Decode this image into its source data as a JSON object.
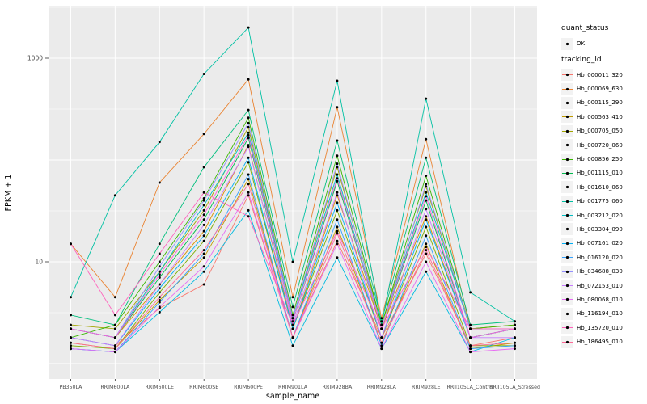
{
  "figure": {
    "background": "#FFFFFF",
    "panel_bg": "#EBEBEB",
    "grid_color": "#FFFFFF",
    "tick_color": "#333333",
    "tick_text_color": "#4D4D4D",
    "point_color": "#000000"
  },
  "legend": {
    "quant_status_title": "quant_status",
    "quant_status_items": [
      {
        "label": "OK"
      }
    ],
    "tracking_id_title": "tracking_id"
  },
  "chart_data": {
    "type": "line",
    "title": "",
    "xlabel": "sample_name",
    "ylabel": "FPKM + 1",
    "y_scale": "log10",
    "grid": true,
    "legend_position": "right",
    "y_ticks": [
      {
        "value": 10,
        "label": "10"
      },
      {
        "value": 1000,
        "label": "1000"
      }
    ],
    "categories": [
      "PB350LA",
      "RRIM600LA",
      "RRIM600LE",
      "RRIM600SE",
      "RRIM600PE",
      "RRIM901LA",
      "RRIM928BA",
      "RRIM928LA",
      "RRIM928LE",
      "RRII105LA_Control",
      "RRII105LA_Stressed"
    ],
    "series": [
      {
        "name": "Hb_000011_320",
        "color": "#F8766D",
        "values": [
          1.8,
          1.5,
          3.5,
          6,
          45,
          1.8,
          16,
          1.8,
          12,
          1.5,
          1.8
        ]
      },
      {
        "name": "Hb_000069_630",
        "color": "#EA8331",
        "values": [
          15,
          4.5,
          60,
          180,
          620,
          4.5,
          330,
          2.8,
          160,
          2.2,
          2.4
        ]
      },
      {
        "name": "Hb_000115_290",
        "color": "#D89000",
        "values": [
          2.2,
          1.8,
          6,
          20,
          140,
          2.2,
          45,
          2.2,
          28,
          1.8,
          2.2
        ]
      },
      {
        "name": "Hb_000563_410",
        "color": "#C09B00",
        "values": [
          1.6,
          1.4,
          4.2,
          11,
          65,
          1.8,
          22,
          1.6,
          15,
          1.4,
          1.6
        ]
      },
      {
        "name": "Hb_000705_050",
        "color": "#A3A500",
        "values": [
          2.4,
          2.2,
          8,
          32,
          210,
          2.8,
          85,
          2.4,
          55,
          2.2,
          2.4
        ]
      },
      {
        "name": "Hb_000720_060",
        "color": "#7CAE00",
        "values": [
          1.5,
          1.4,
          5,
          16,
          95,
          2.2,
          32,
          1.8,
          22,
          1.5,
          1.5
        ]
      },
      {
        "name": "Hb_000856_250",
        "color": "#39B600",
        "values": [
          1.8,
          2.4,
          10,
          42,
          260,
          3,
          110,
          2.4,
          70,
          2.2,
          2.4
        ]
      },
      {
        "name": "Hb_001115_010",
        "color": "#00BB4E",
        "values": [
          2.2,
          1.8,
          7,
          26,
          165,
          2.6,
          62,
          2.2,
          40,
          1.8,
          2.2
        ]
      },
      {
        "name": "Hb_001610_060",
        "color": "#00BF7D",
        "values": [
          3,
          2.4,
          15,
          85,
          310,
          3.6,
          155,
          2.6,
          105,
          2.4,
          2.6
        ]
      },
      {
        "name": "Hb_001775_060",
        "color": "#00C1A3",
        "values": [
          4.5,
          45,
          150,
          700,
          2000,
          10,
          600,
          2.4,
          400,
          5,
          2.6
        ]
      },
      {
        "name": "Hb_003212_020",
        "color": "#00BFC4",
        "values": [
          2.2,
          1.8,
          8,
          36,
          185,
          2.8,
          72,
          2.2,
          48,
          2.2,
          2.2
        ]
      },
      {
        "name": "Hb_003304_090",
        "color": "#00BAE0",
        "values": [
          1.4,
          1.3,
          3.2,
          8,
          32,
          1.5,
          11,
          1.4,
          8,
          1.3,
          1.8
        ]
      },
      {
        "name": "Hb_007161_020",
        "color": "#00B0F6",
        "values": [
          1.8,
          1.5,
          5.5,
          18,
          105,
          2.2,
          38,
          1.8,
          26,
          1.8,
          2.2
        ]
      },
      {
        "name": "Hb_016120_020",
        "color": "#35A2FF",
        "values": [
          1.4,
          1.3,
          4,
          12,
          72,
          1.8,
          26,
          1.5,
          18,
          1.4,
          1.5
        ]
      },
      {
        "name": "Hb_034688_030",
        "color": "#9590FF",
        "values": [
          2.2,
          1.8,
          9,
          40,
          230,
          2.8,
          92,
          2.2,
          58,
          2.2,
          2.2
        ]
      },
      {
        "name": "Hb_072153_010",
        "color": "#C77CFF",
        "values": [
          1.8,
          1.5,
          6,
          23,
          135,
          2.4,
          48,
          1.8,
          33,
          1.8,
          1.8
        ]
      },
      {
        "name": "Hb_080068_010",
        "color": "#E76BF3",
        "values": [
          1.4,
          1.3,
          3.6,
          9,
          48,
          1.8,
          15,
          1.4,
          10,
          1.3,
          1.4
        ]
      },
      {
        "name": "Hb_116194_010",
        "color": "#FA62DB",
        "values": [
          2.2,
          1.8,
          7.5,
          29,
          175,
          2.6,
          66,
          2.2,
          44,
          1.8,
          2.2
        ]
      },
      {
        "name": "Hb_135720_010",
        "color": "#FF62BC",
        "values": [
          15,
          3,
          12,
          48,
          28,
          2.4,
          20,
          2.2,
          14,
          2.2,
          2.2
        ]
      },
      {
        "name": "Hb_186495_010",
        "color": "#FF6A98",
        "values": [
          1.6,
          1.4,
          4.5,
          13,
          58,
          1.8,
          19,
          1.6,
          13,
          1.5,
          1.6
        ]
      }
    ]
  }
}
